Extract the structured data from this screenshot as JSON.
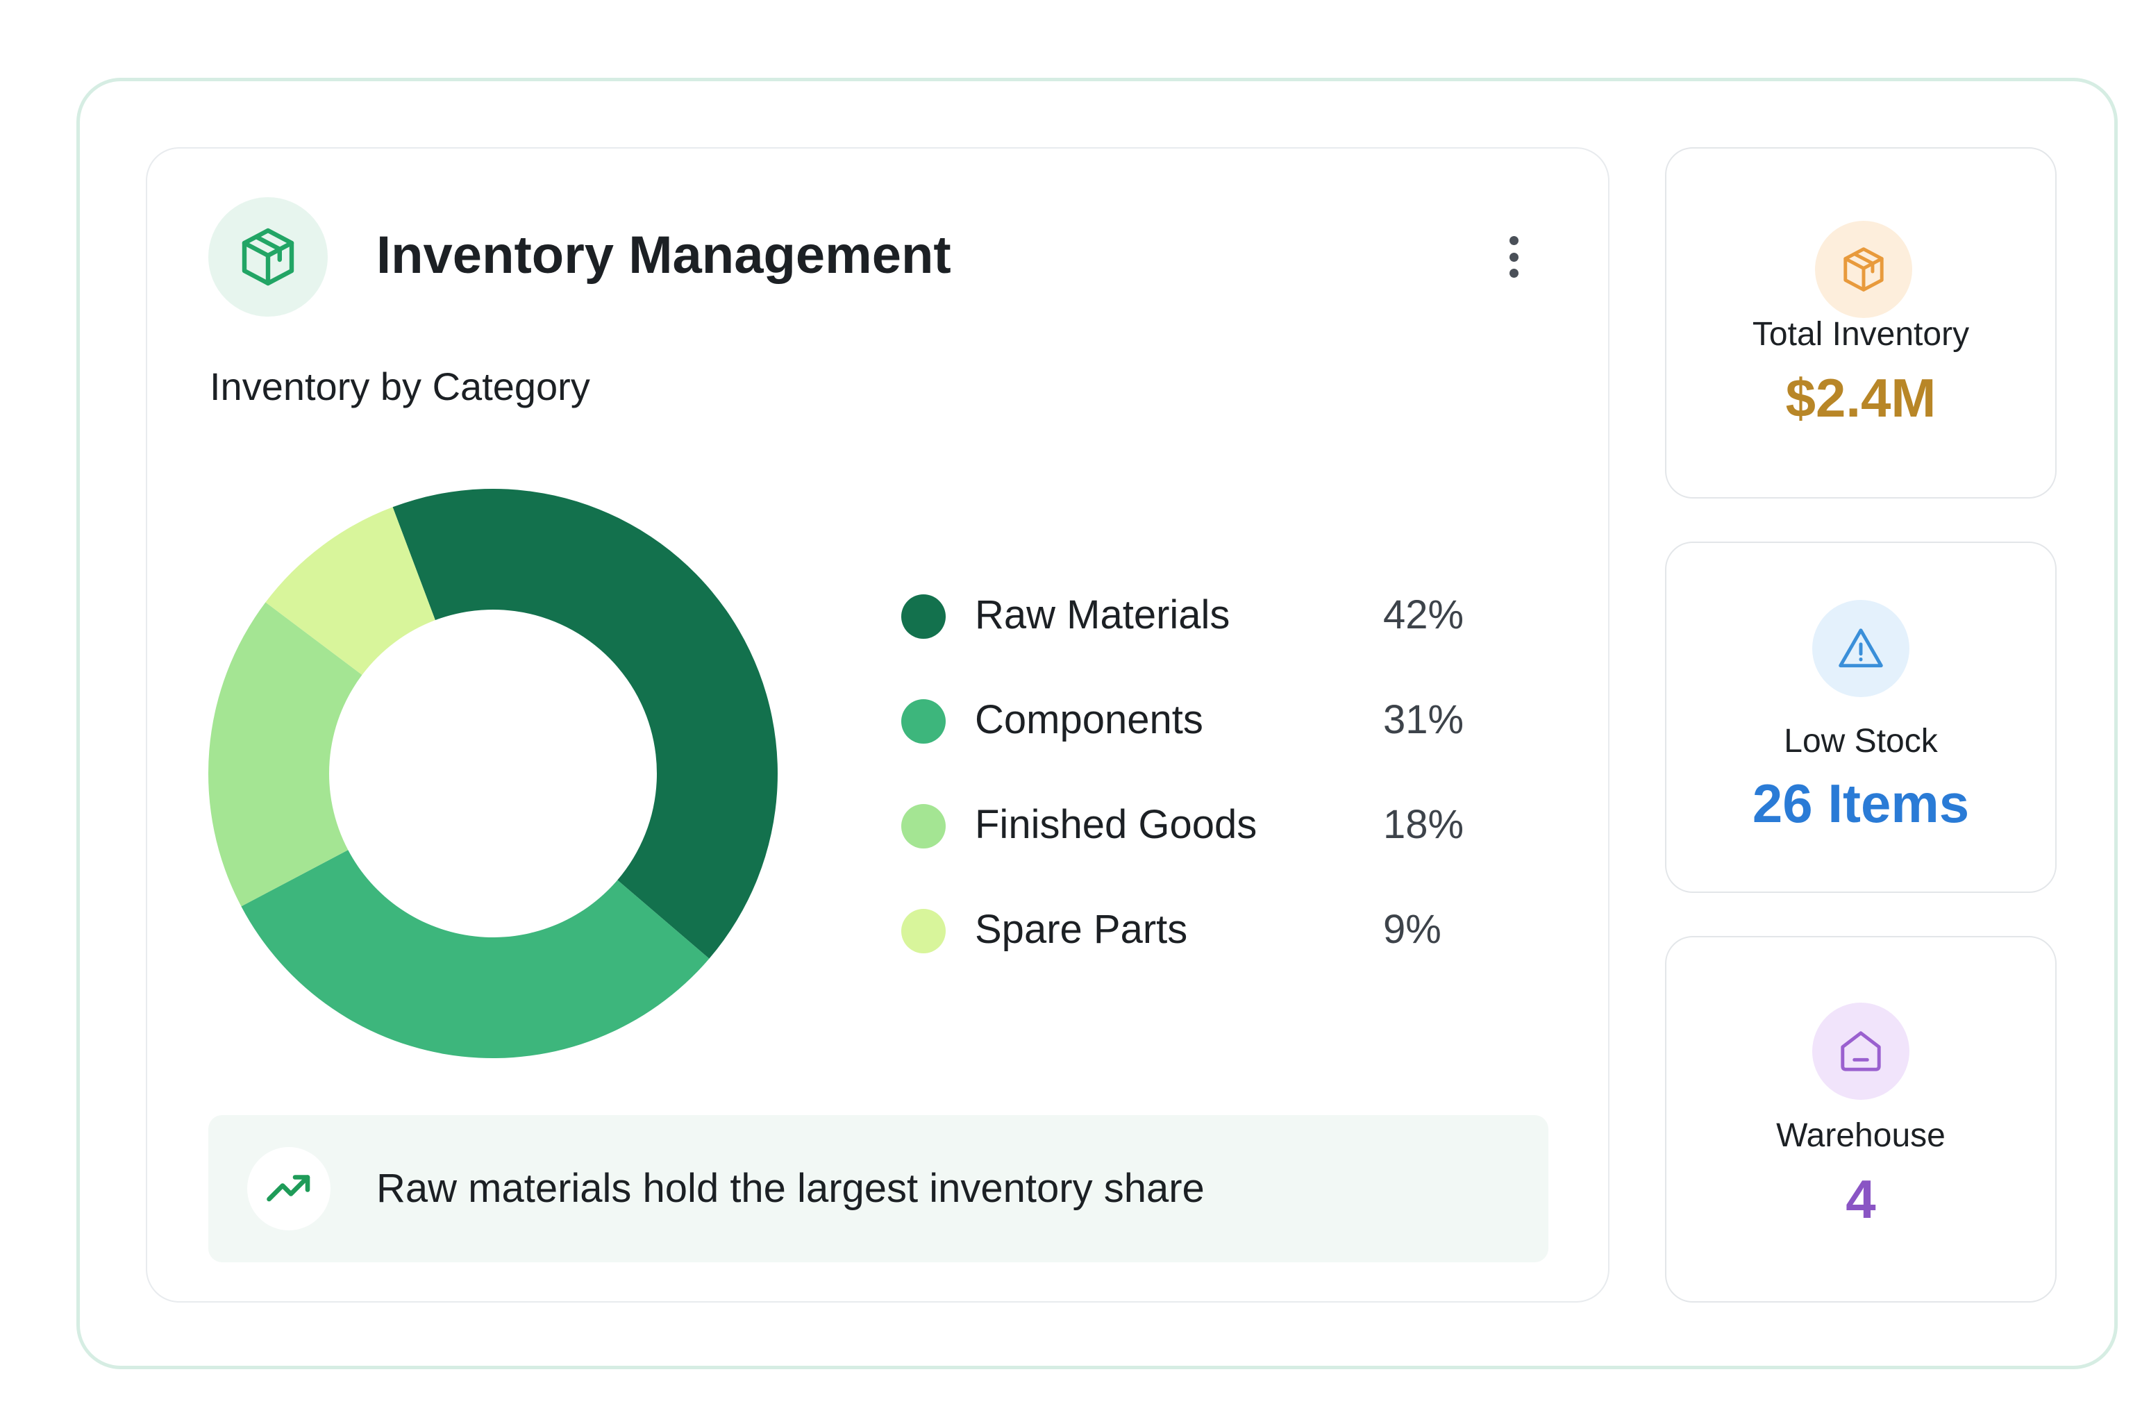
{
  "header": {
    "icon": "package-icon",
    "title": "Inventory Management",
    "menu_icon": "more-vertical-icon"
  },
  "chart": {
    "subtitle": "Inventory by Category"
  },
  "chart_data": {
    "type": "pie",
    "style": "donut",
    "title": "Inventory by Category",
    "categories": [
      "Raw Materials",
      "Components",
      "Finished Goods",
      "Spare Parts"
    ],
    "values": [
      42,
      31,
      18,
      9
    ],
    "value_labels": [
      "42%",
      "31%",
      "18%",
      "9%"
    ],
    "colors": [
      "#13714d",
      "#3db67c",
      "#a4e593",
      "#d8f59b"
    ],
    "legend_position": "right"
  },
  "insight": {
    "icon": "trending-up-icon",
    "text": "Raw materials hold the largest inventory share"
  },
  "stats": [
    {
      "icon": "package-icon",
      "label": "Total Inventory",
      "value": "$2.4M",
      "color": "#b88627",
      "icon_bg": "#fdeedc"
    },
    {
      "icon": "alert-triangle-icon",
      "label": "Low Stock",
      "value": "26 Items",
      "color": "#2a7bd6",
      "icon_bg": "#e4f1fc"
    },
    {
      "icon": "home-icon",
      "label": "Warehouse",
      "value": "4",
      "color": "#8a55c4",
      "icon_bg": "#f1e4fb"
    }
  ]
}
